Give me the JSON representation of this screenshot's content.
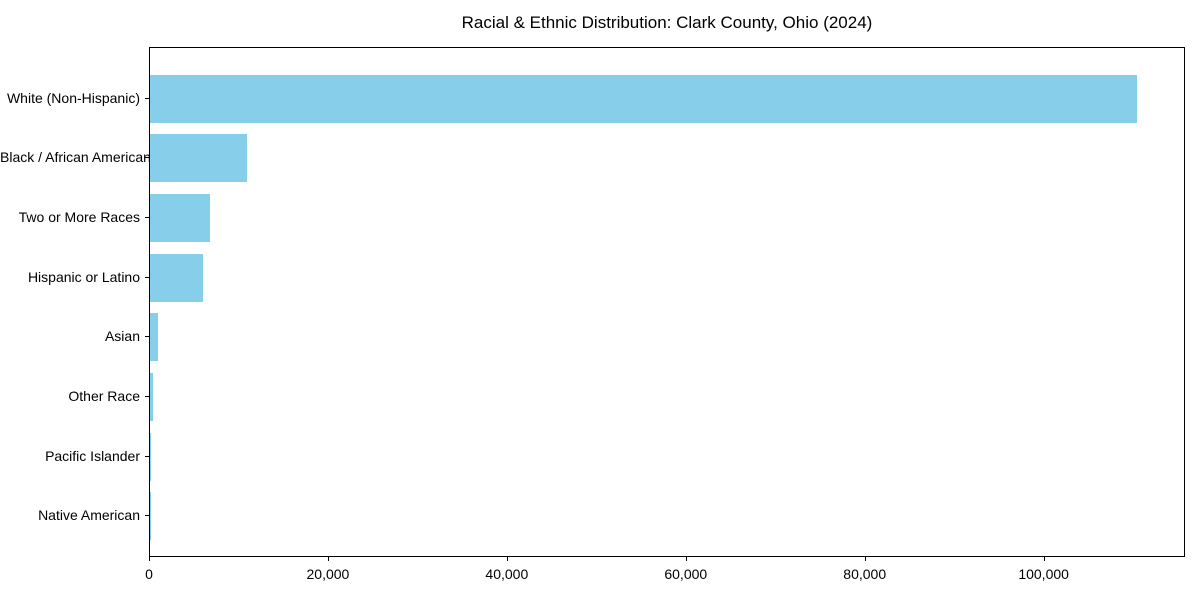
{
  "title": "Racial & Ethnic Distribution: Clark County, Ohio (2024)",
  "chart_data": {
    "type": "bar",
    "orientation": "horizontal",
    "title": "Racial & Ethnic Distribution: Clark County, Ohio (2024)",
    "categories": [
      "White (Non-Hispanic)",
      "Black / African American",
      "Two or More Races",
      "Hispanic or Latino",
      "Asian",
      "Other Race",
      "Pacific Islander",
      "Native American"
    ],
    "values": [
      110300,
      10800,
      6700,
      5950,
      950,
      330,
      60,
      30
    ],
    "bar_color": "#87CEEB",
    "xlabel": "",
    "ylabel": "",
    "xlim": [
      0,
      115800
    ],
    "xticks": [
      {
        "value": 0,
        "label": "0"
      },
      {
        "value": 20000,
        "label": "20,000"
      },
      {
        "value": 40000,
        "label": "40,000"
      },
      {
        "value": 60000,
        "label": "60,000"
      },
      {
        "value": 80000,
        "label": "80,000"
      },
      {
        "value": 100000,
        "label": "100,000"
      }
    ],
    "grid": false,
    "legend": null,
    "spine_color": "#000000",
    "text_color": "#000000"
  }
}
